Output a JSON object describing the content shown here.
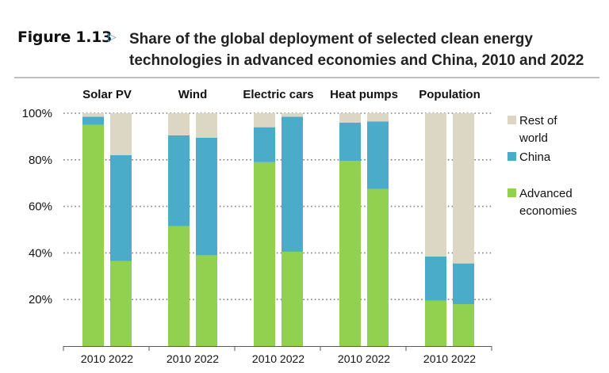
{
  "figure": {
    "label": "Figure 1.13",
    "arrow": "▷",
    "title_line1": "Share of the global deployment of selected clean energy",
    "title_line2": "technologies in advanced economies and China, 2010 and 2022"
  },
  "chart_data": {
    "type": "bar",
    "stacked": true,
    "title": "Share of the global deployment of selected clean energy technologies in advanced economies and China, 2010 and 2022",
    "xlabel": "",
    "ylabel": "",
    "ylim": [
      0,
      100
    ],
    "yticks": [
      20,
      40,
      60,
      80,
      100
    ],
    "ytick_labels": [
      "20%",
      "40%",
      "60%",
      "80%",
      "100%"
    ],
    "grid": "horizontal-dotted",
    "legend_position": "right",
    "groups": [
      "Solar PV",
      "Wind",
      "Electric cars",
      "Heat pumps",
      "Population"
    ],
    "years": [
      "2010",
      "2022"
    ],
    "series": [
      {
        "name": "Advanced economies",
        "color": "#92d050",
        "values": [
          [
            95,
            36.5
          ],
          [
            51.5,
            39
          ],
          [
            79,
            40.5
          ],
          [
            79.5,
            67.5
          ],
          [
            19.5,
            18
          ]
        ]
      },
      {
        "name": "China",
        "color": "#4aacc9",
        "values": [
          [
            3.5,
            45.5
          ],
          [
            39,
            50.5
          ],
          [
            15,
            58
          ],
          [
            16.5,
            29
          ],
          [
            19,
            17.5
          ]
        ]
      },
      {
        "name": "Rest of world",
        "color": "#dcd6c5",
        "values": [
          [
            1.5,
            18
          ],
          [
            9.5,
            10.5
          ],
          [
            6,
            1.5
          ],
          [
            4,
            3.5
          ],
          [
            61.5,
            64.5
          ]
        ]
      }
    ],
    "legend": [
      {
        "line1": "Rest of",
        "line2": "world",
        "color": "#dcd6c5"
      },
      {
        "line1": "China",
        "line2": "",
        "color": "#4aacc9"
      },
      {
        "line1": "Advanced",
        "line2": "economies",
        "color": "#92d050"
      }
    ]
  }
}
